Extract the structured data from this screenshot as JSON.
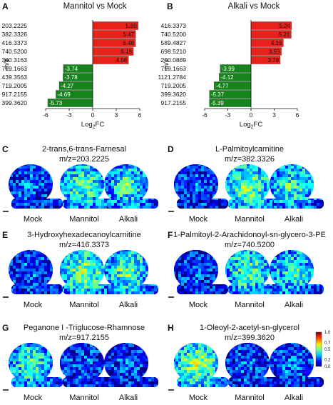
{
  "chart_data": [
    {
      "panel": "A",
      "type": "bar",
      "orientation": "horizontal",
      "title": "Mannitol vs Mock",
      "ylabel": "m/z",
      "xlabel": "Log2FC",
      "xlim": [
        -6,
        6
      ],
      "xticks": [
        "-6",
        "-3",
        "0",
        "3",
        "6"
      ],
      "categories": [
        "203.2225",
        "382.3326",
        "416.3373",
        "740.5200",
        "380.3163",
        "719.1663",
        "439.3563",
        "719.2005",
        "917.2155",
        "399.3620"
      ],
      "values": [
        5.8,
        5.47,
        5.46,
        5.18,
        4.56,
        -3.74,
        -3.78,
        -4.27,
        -4.69,
        -5.73
      ],
      "value_labels": [
        "5.80",
        "5.47",
        "5.46",
        "5.18",
        "4.56",
        "-3.74",
        "-3.78",
        "-4.27",
        "-4.69",
        "-5.73"
      ]
    },
    {
      "panel": "B",
      "type": "bar",
      "orientation": "horizontal",
      "title": "Alkali vs Mock",
      "ylabel": "m/z",
      "xlabel": "Log2FC",
      "xlim": [
        -6,
        6
      ],
      "xticks": [
        "-6",
        "-3",
        "0",
        "3",
        "6"
      ],
      "categories": [
        "416.3373",
        "740.5200",
        "589.4827",
        "698.5210",
        "200.0889",
        "719.1663",
        "1121.2784",
        "719.2005",
        "399.3620",
        "917.2155"
      ],
      "values": [
        5.24,
        5.21,
        4.19,
        3.93,
        3.78,
        -3.99,
        -4.12,
        -4.77,
        -5.37,
        -5.39
      ],
      "value_labels": [
        "5.24",
        "5.21",
        "4.19",
        "3.93",
        "3.78",
        "-3.99",
        "-4.12",
        "-4.77",
        "-5.37",
        "-5.39"
      ]
    }
  ],
  "colors": {
    "positive": "#e8221b",
    "negative": "#16841c"
  },
  "image_panels": [
    {
      "letter": "C",
      "name": "2-trans,6-trans-Farnesal",
      "mz": "m/z=203.2225",
      "conditions": [
        "Mock",
        "Mannitol",
        "Alkali"
      ],
      "intensity": [
        0.22,
        0.45,
        0.42
      ]
    },
    {
      "letter": "D",
      "name": "L-Palmitoylcarnitine",
      "mz": "m/z=382.3326",
      "conditions": [
        "Mock",
        "Mannitol",
        "Alkali"
      ],
      "intensity": [
        0.2,
        0.48,
        0.42
      ]
    },
    {
      "letter": "E",
      "name": "3-Hydroxyhexadecanoylcarnitine",
      "mz": "m/z=416.3373",
      "conditions": [
        "Mock",
        "Mannitol",
        "Alkali"
      ],
      "intensity": [
        0.22,
        0.5,
        0.45
      ]
    },
    {
      "letter": "F",
      "name": "1-Palmitoyl-2-Arachidonoyl-sn-glycero-3-PE",
      "mz": "m/z=740.5200",
      "conditions": [
        "Mock",
        "Mannitol",
        "Alkali"
      ],
      "intensity": [
        0.2,
        0.45,
        0.4
      ]
    },
    {
      "letter": "G",
      "name": "Peganone I -Triglucose-Rhamnose",
      "mz": "m/z=917.2155",
      "conditions": [
        "Mock",
        "Mannitol",
        "Alkali"
      ],
      "intensity": [
        0.42,
        0.2,
        0.2
      ]
    },
    {
      "letter": "H",
      "name": "1-Oleoyl-2-acetyl-sn-glycerol",
      "mz": "m/z=399.3620",
      "conditions": [
        "Mock",
        "Mannitol",
        "Alkali"
      ],
      "intensity": [
        0.5,
        0.22,
        0.22
      ]
    }
  ],
  "colorbar": {
    "ticks": [
      "1.0",
      "0.7",
      "0.5",
      "0.2",
      "0.0"
    ],
    "colormap": "jet"
  }
}
